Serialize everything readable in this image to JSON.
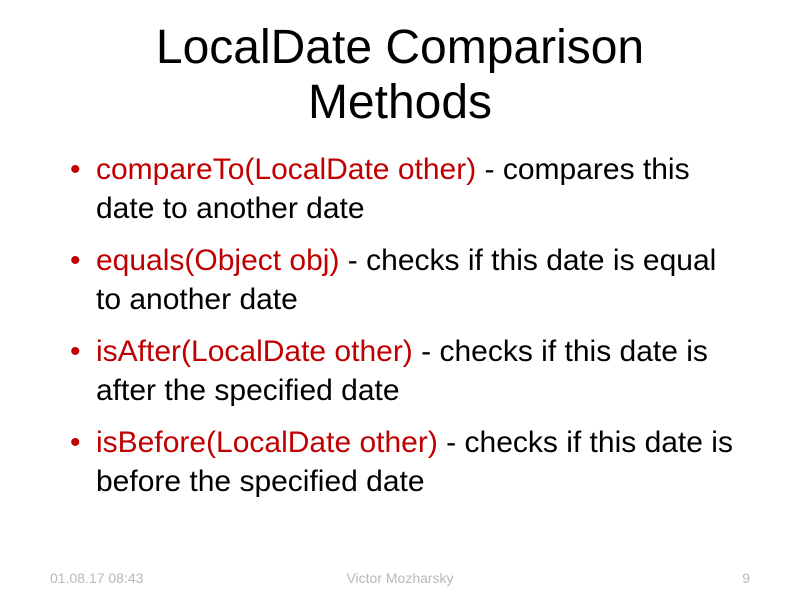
{
  "title": "LocalDate Comparison Methods",
  "bullets": [
    {
      "method": "compareTo(LocalDate other)",
      "description": " - compares this date to another date"
    },
    {
      "method": "equals(Object obj)",
      "description": " - checks if this date is equal to another date"
    },
    {
      "method": "isAfter(LocalDate other)",
      "description": " - checks if this date is after the specified date"
    },
    {
      "method": "isBefore(LocalDate other)",
      "description": " - checks if this date is before the specified date"
    }
  ],
  "footer": {
    "datetime": "01.08.17 08:43",
    "author": "Victor Mozharsky",
    "pageNumber": "9"
  },
  "colors": {
    "accent": "#c00000",
    "text": "#000000",
    "footer": "#b8b8b8",
    "background": "#ffffff"
  },
  "typography": {
    "titleSize": 48,
    "bodySize": 30,
    "footerSize": 14
  }
}
